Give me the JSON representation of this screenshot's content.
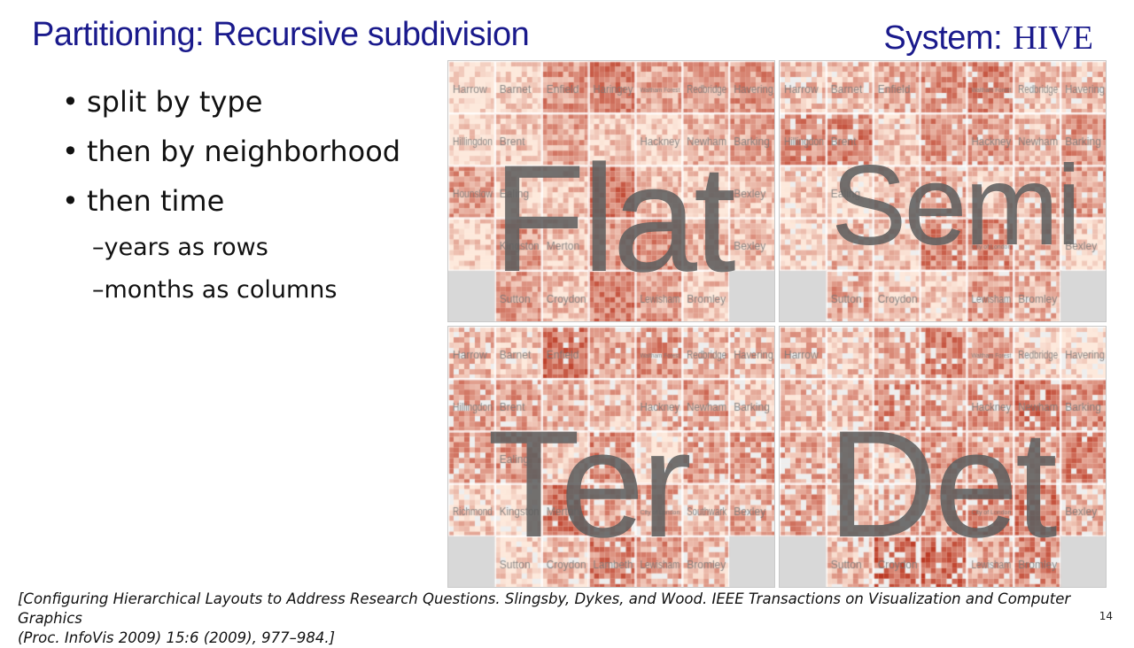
{
  "slide": {
    "title": "Partitioning: Recursive subdivision",
    "system_label": "System:",
    "system_name": "HIVE",
    "bullets": [
      "split by type",
      "then by neighborhood",
      "then time"
    ],
    "sub_bullets": [
      "years as rows",
      "months as columns"
    ],
    "sub_marker": "–",
    "reference_line1": "[Configuring Hierarchical Layouts to Address Research Questions. Slingsby, Dykes, and Wood.  IEEE Transactions on Visualization and Computer Graphics",
    "reference_line2": "(Proc. InfoVis 2009) 15:6 (2009), 977–984.]",
    "page_number": "14"
  },
  "figure": {
    "quadrants": [
      {
        "label": "Flat",
        "neighborhoods": [
          "Harrow",
          "Barnet",
          "Enfield",
          "Haringey",
          "Waltham Forest",
          "Redbridge",
          "Havering",
          "Hillingdon",
          "Brent",
          "",
          "",
          "Hackney",
          "Newham",
          "Barking",
          "Hounslow",
          "Ealing",
          "",
          "",
          "",
          "",
          "Bexley",
          "",
          "Kingston",
          "Merton",
          "",
          "",
          "",
          "Bexley",
          "",
          "Sutton",
          "Croydon",
          "",
          "Lewisham",
          "Bromley",
          ""
        ]
      },
      {
        "label": "Semi",
        "neighborhoods": [
          "Harrow",
          "Barnet",
          "Enfield",
          "",
          "Waltham Forest",
          "Redbridge",
          "Havering",
          "Hillingdon",
          "Brent",
          "",
          "",
          "Hackney",
          "Newham",
          "Barking",
          "",
          "Ealing",
          "",
          "",
          "",
          "",
          "",
          "",
          "",
          "",
          "",
          "City of London",
          "",
          "Bexley",
          "",
          "Sutton",
          "Croydon",
          "",
          "Lewisham",
          "Bromley",
          ""
        ]
      },
      {
        "label": "Ter",
        "neighborhoods": [
          "Harrow",
          "Barnet",
          "Enfield",
          "",
          "Waltham Forest",
          "Redbridge",
          "Havering",
          "Hillingdon",
          "Brent",
          "",
          "",
          "Hackney",
          "Newham",
          "Barking",
          "",
          "Ealing",
          "",
          "",
          "",
          "",
          "",
          "Richmond",
          "Kingston",
          "Merton",
          "",
          "City of London",
          "Southwark",
          "Bexley",
          "",
          "Sutton",
          "Croydon",
          "Lambeth",
          "Lewisham",
          "Bromley",
          ""
        ]
      },
      {
        "label": "Det",
        "neighborhoods": [
          "Harrow",
          "",
          "",
          "",
          "Waltham Forest",
          "Redbridge",
          "Havering",
          "",
          "",
          "",
          "",
          "Hackney",
          "Newham",
          "Barking",
          "",
          "",
          "",
          "",
          "",
          "",
          "",
          "",
          "",
          "",
          "",
          "City of London",
          "",
          "Bexley",
          "",
          "Sutton",
          "Croydon",
          "",
          "Lewisham",
          "Bromley",
          ""
        ]
      }
    ],
    "colors": {
      "low": "#fde9dc",
      "high": "#b8321c",
      "empty": "#d8d8d8",
      "overlay_text": "#5f5f5f"
    }
  }
}
